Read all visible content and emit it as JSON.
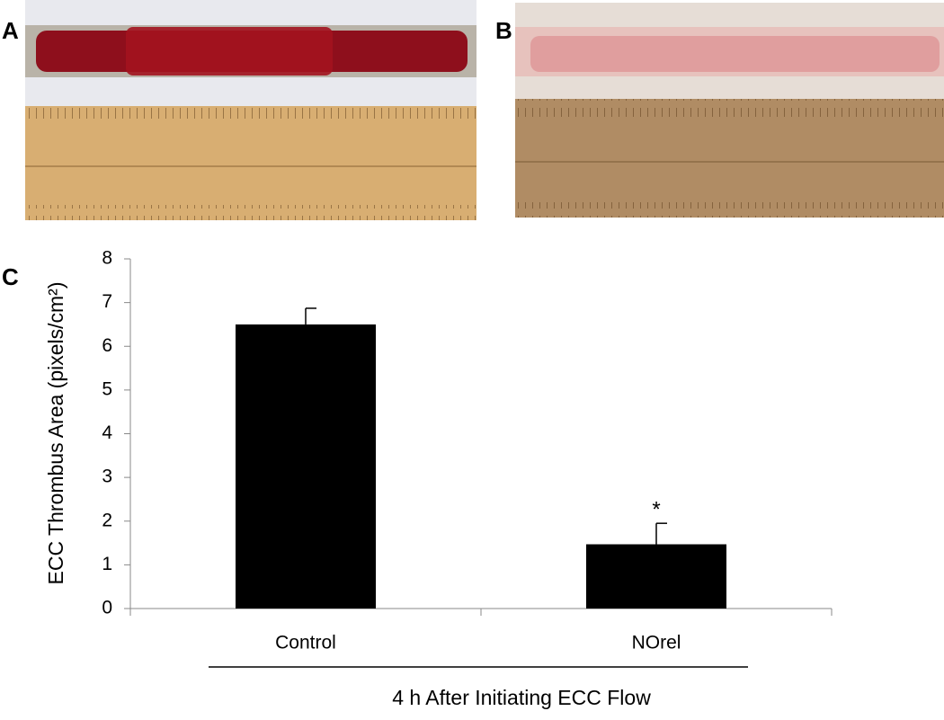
{
  "panels": {
    "a": "A",
    "b": "B",
    "c": "C"
  },
  "chart_data": {
    "type": "bar",
    "ylabel": "ECC Thrombus Area (pixels/cm²)",
    "xlabel": "4 h After Initiating ECC Flow",
    "categories": [
      "Control",
      "NOrel"
    ],
    "values": [
      6.5,
      1.47
    ],
    "errors": [
      0.37,
      0.48
    ],
    "color": "#000000",
    "annotations": [
      {
        "text": "*",
        "x": "NOrel"
      }
    ],
    "ylim": [
      0,
      8
    ],
    "yticks": [
      0,
      1,
      2,
      3,
      4,
      5,
      6,
      7,
      8
    ]
  }
}
